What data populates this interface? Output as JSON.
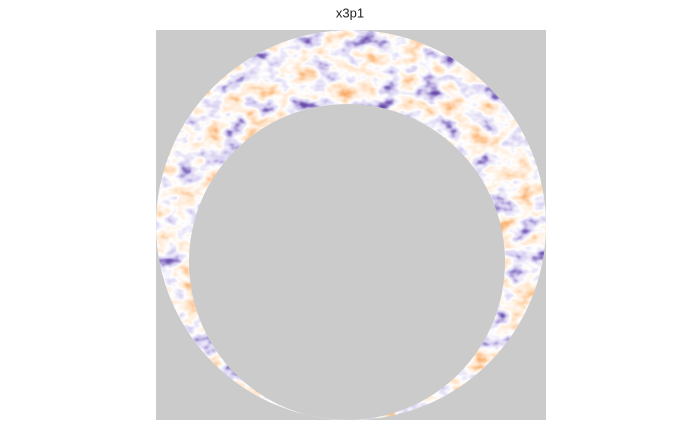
{
  "title": "x3p1"
}
